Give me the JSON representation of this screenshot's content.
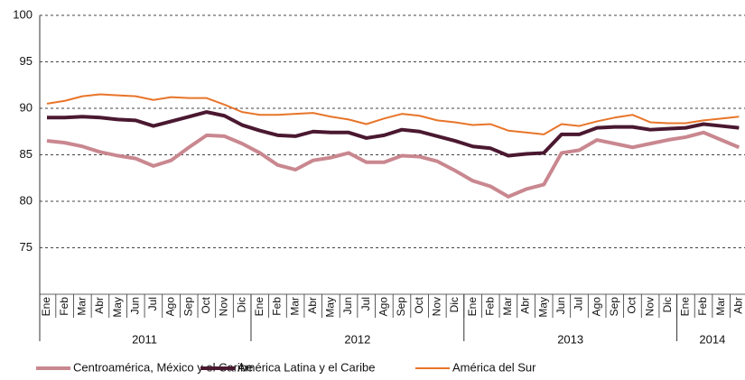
{
  "chart_data": {
    "type": "line",
    "categories": [
      "Ene",
      "Feb",
      "Mar",
      "Abr",
      "May",
      "Jun",
      "Jul",
      "Ago",
      "Sep",
      "Oct",
      "Nov",
      "Dic",
      "Ene",
      "Feb",
      "Mar",
      "Abr",
      "May",
      "Jun",
      "Jul",
      "Ago",
      "Sep",
      "Oct",
      "Nov",
      "Dic",
      "Ene",
      "Feb",
      "Mar",
      "Abr",
      "May",
      "Jun",
      "Jul",
      "Ago",
      "Sep",
      "Oct",
      "Nov",
      "Dic",
      "Ene",
      "Feb",
      "Mar",
      "Abr"
    ],
    "groups": [
      {
        "label": "2011",
        "span": 12
      },
      {
        "label": "2012",
        "span": 12
      },
      {
        "label": "2013",
        "span": 12
      },
      {
        "label": "2014",
        "span": 4
      }
    ],
    "series": [
      {
        "name": "Centroamérica, México y el Caribe",
        "color": "#c9878f",
        "width": 4,
        "values": [
          86.5,
          86.3,
          85.9,
          85.3,
          84.9,
          84.6,
          83.8,
          84.4,
          85.8,
          87.1,
          87.0,
          86.2,
          85.2,
          83.9,
          83.4,
          84.4,
          84.7,
          85.2,
          84.2,
          84.2,
          84.9,
          84.8,
          84.3,
          83.3,
          82.2,
          81.6,
          80.5,
          81.3,
          81.8,
          85.2,
          85.5,
          86.6,
          86.2,
          85.8,
          86.2,
          86.6,
          86.9,
          87.4,
          86.6,
          85.8
        ]
      },
      {
        "name": "América Latina y el Caribe",
        "color": "#4a1830",
        "width": 4,
        "values": [
          89.0,
          89.0,
          89.1,
          89.0,
          88.8,
          88.7,
          88.1,
          88.6,
          89.1,
          89.6,
          89.2,
          88.2,
          87.6,
          87.1,
          87.0,
          87.5,
          87.4,
          87.4,
          86.8,
          87.1,
          87.7,
          87.5,
          87.0,
          86.5,
          85.9,
          85.7,
          84.9,
          85.1,
          85.2,
          87.2,
          87.2,
          87.9,
          88.0,
          88.0,
          87.7,
          87.8,
          87.9,
          88.3,
          88.1,
          87.9
        ]
      },
      {
        "name": "América del Sur",
        "color": "#e8752a",
        "width": 2,
        "values": [
          90.5,
          90.8,
          91.3,
          91.5,
          91.4,
          91.3,
          90.9,
          91.2,
          91.1,
          91.1,
          90.4,
          89.6,
          89.3,
          89.3,
          89.4,
          89.5,
          89.1,
          88.8,
          88.3,
          88.9,
          89.4,
          89.2,
          88.7,
          88.5,
          88.2,
          88.3,
          87.6,
          87.4,
          87.2,
          88.3,
          88.1,
          88.6,
          89.0,
          89.3,
          88.5,
          88.4,
          88.4,
          88.7,
          88.9,
          89.1
        ]
      }
    ],
    "ylim": [
      70,
      100
    ],
    "yticks": [
      75,
      80,
      85,
      90,
      95,
      100
    ],
    "grid": true
  }
}
